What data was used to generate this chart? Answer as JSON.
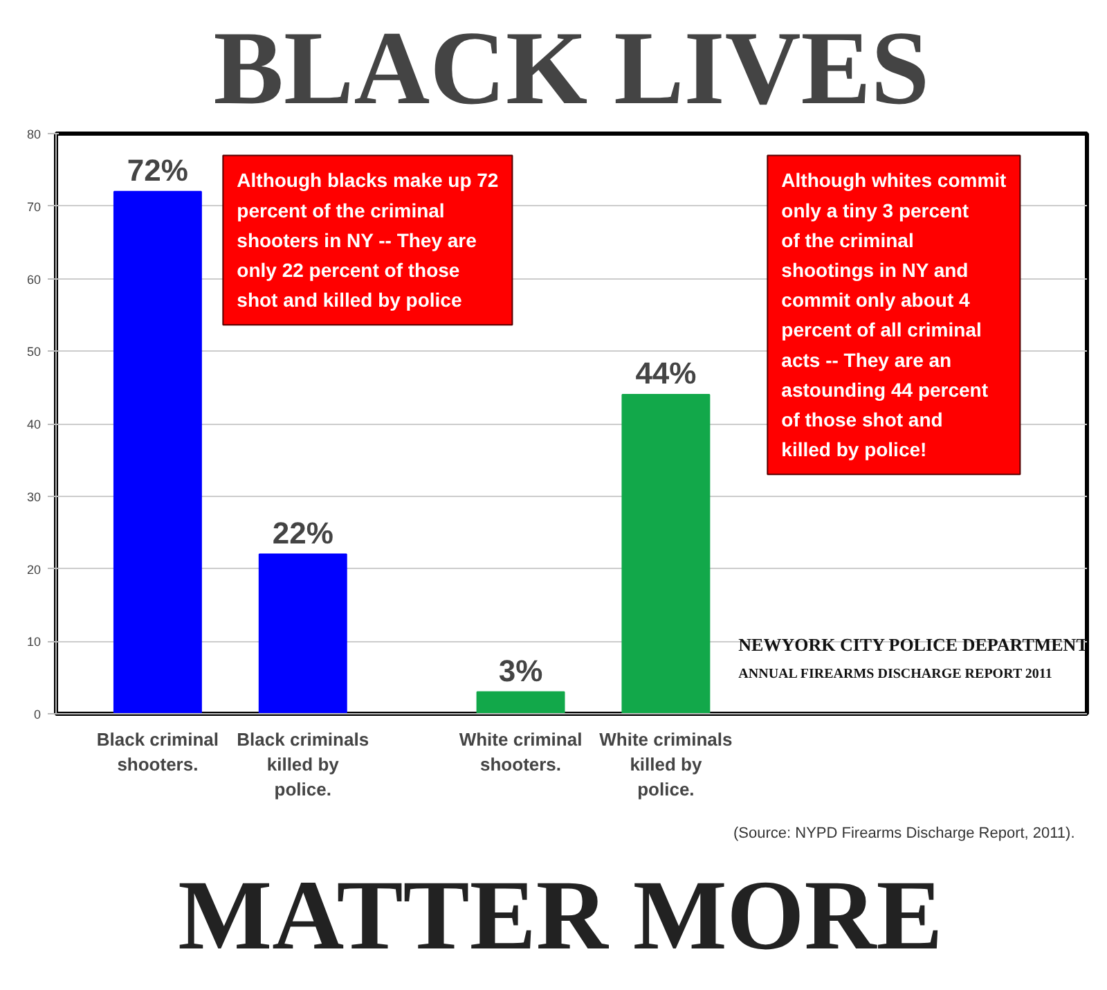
{
  "chart_data": {
    "type": "bar",
    "title": "BLACK LIVES",
    "categories": [
      "Black criminal shooters.",
      "Black criminals killed by police.",
      "White criminal shooters.",
      "White criminals killed by police."
    ],
    "values": [
      72,
      22,
      3,
      44
    ],
    "colors": [
      "#0000ff",
      "#0000ff",
      "#12a84a",
      "#12a84a"
    ],
    "value_labels": [
      "72%",
      "22%",
      "3%",
      "44%"
    ],
    "ylim": [
      0,
      80
    ],
    "yticks": [
      0,
      10,
      20,
      30,
      40,
      50,
      60,
      70,
      80
    ],
    "grid": "y",
    "annotations": [
      "Although blacks make up 72 percent of the criminal shooters in NY -- They are only 22 percent of those shot and killed by police",
      "Although whites commit only a tiny 3 percent of the criminal shootings in NY and commit only about 4 percent of all criminal acts -- They are an astounding 44 percent of those shot and killed by police!",
      "NEWYORK CITY POLICE DEPARTMENT",
      "ANNUAL FIREARMS DISCHARGE REPORT 2011",
      "(Source: NYPD Firearms Discharge Report, 2011).",
      "MATTER MORE"
    ]
  }
}
